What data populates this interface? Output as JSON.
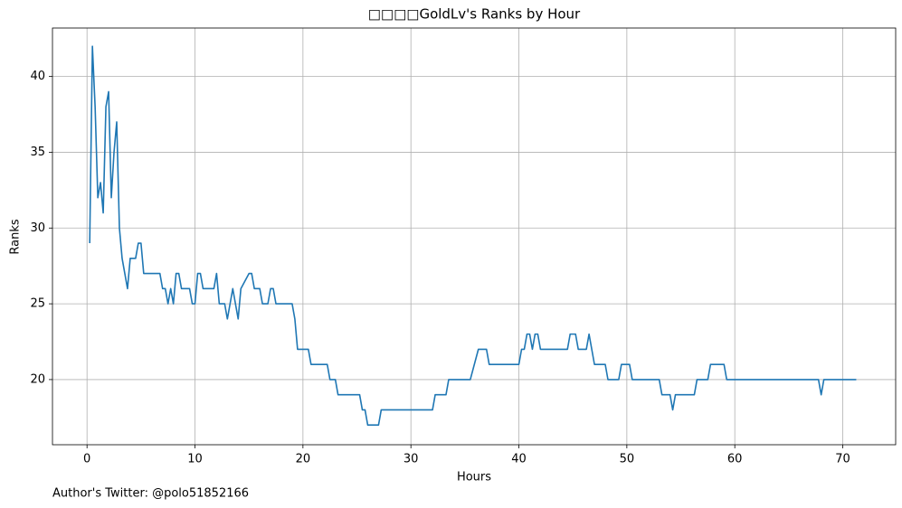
{
  "chart_data": {
    "type": "line",
    "title": "□□□□GoldLv's Ranks by Hour",
    "xlabel": "Hours",
    "ylabel": "Ranks",
    "footnote": "Author's Twitter: @polo51852166",
    "color": "#1f77b4",
    "grid": true,
    "xlim": [
      -3.2,
      74.9
    ],
    "ylim": [
      15.7,
      43.2
    ],
    "xticks": [
      0,
      10,
      20,
      30,
      40,
      50,
      60,
      70
    ],
    "yticks": [
      20,
      25,
      30,
      35,
      40
    ],
    "x": [
      0.25,
      0.5,
      0.75,
      1.0,
      1.25,
      1.5,
      1.75,
      2.0,
      2.25,
      2.5,
      2.75,
      3.0,
      3.25,
      3.5,
      3.75,
      4.0,
      4.5,
      4.75,
      5.0,
      5.25,
      6.75,
      7.0,
      7.25,
      7.5,
      7.75,
      8.0,
      8.25,
      8.5,
      8.75,
      9.5,
      9.75,
      10.0,
      10.25,
      10.5,
      10.75,
      11.75,
      12.0,
      12.25,
      12.75,
      13.0,
      13.5,
      14.0,
      14.25,
      15.0,
      15.25,
      15.5,
      16.0,
      16.25,
      16.75,
      17.0,
      17.25,
      17.5,
      19.0,
      19.25,
      19.5,
      20.5,
      20.75,
      22.25,
      22.5,
      23.0,
      23.25,
      25.25,
      25.5,
      25.75,
      26.0,
      27.0,
      27.25,
      32.0,
      32.25,
      33.25,
      33.5,
      35.5,
      36.25,
      37.0,
      37.25,
      40.0,
      40.25,
      40.5,
      40.75,
      41.0,
      41.25,
      41.5,
      41.75,
      42.0,
      44.5,
      44.75,
      45.25,
      45.5,
      46.25,
      46.5,
      47.0,
      48.0,
      48.25,
      49.25,
      49.5,
      50.25,
      50.5,
      53.0,
      53.25,
      54.0,
      54.25,
      54.5,
      56.25,
      56.5,
      57.5,
      57.75,
      59.0,
      59.25,
      67.75,
      68.0,
      68.25,
      71.25
    ],
    "values": [
      29,
      42,
      38,
      32,
      33,
      31,
      38,
      39,
      32,
      35,
      37,
      30,
      28,
      27,
      26,
      28,
      28,
      29,
      29,
      27,
      27,
      26,
      26,
      25,
      26,
      25,
      27,
      27,
      26,
      26,
      25,
      25,
      27,
      27,
      26,
      26,
      27,
      25,
      25,
      24,
      26,
      24,
      26,
      27,
      27,
      26,
      26,
      25,
      25,
      26,
      26,
      25,
      25,
      24,
      22,
      22,
      21,
      21,
      20,
      20,
      19,
      19,
      18,
      18,
      17,
      17,
      18,
      18,
      19,
      19,
      20,
      20,
      22,
      22,
      21,
      21,
      22,
      22,
      23,
      23,
      22,
      23,
      23,
      22,
      22,
      23,
      23,
      22,
      22,
      23,
      21,
      21,
      20,
      20,
      21,
      21,
      20,
      20,
      19,
      19,
      18,
      19,
      19,
      20,
      20,
      21,
      21,
      20,
      20,
      19,
      20,
      20
    ]
  }
}
